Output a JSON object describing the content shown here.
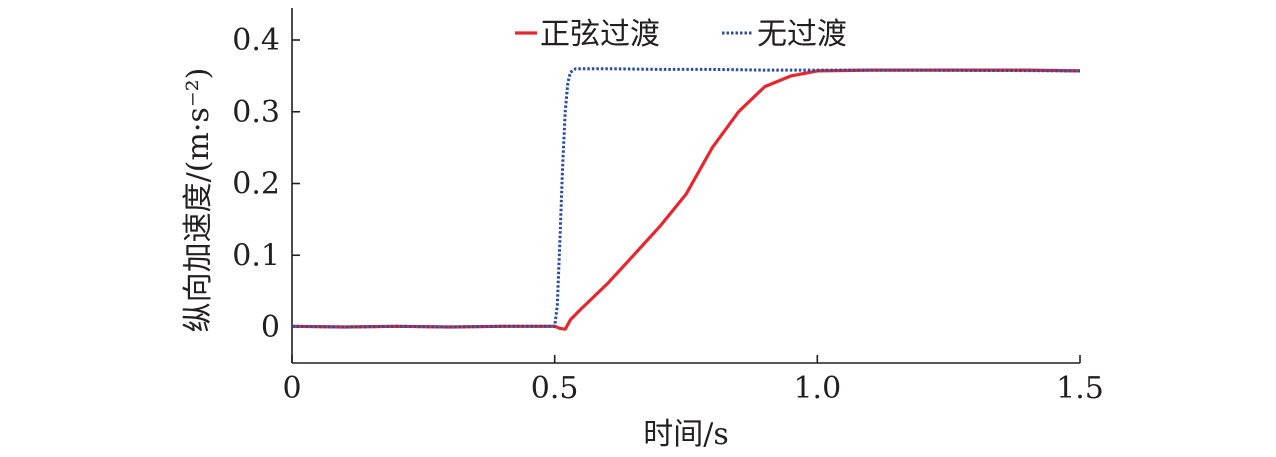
{
  "chart_data": {
    "type": "line",
    "title": "",
    "xlabel": "时间/s",
    "ylabel": "纵向加速度/(m·s⁻²)",
    "xlim": [
      0,
      1.5
    ],
    "ylim": [
      -0.05,
      0.45
    ],
    "x_ticks": [
      0,
      0.5,
      1.0,
      1.5
    ],
    "x_tick_labels": [
      "0",
      "0.5",
      "1.0",
      "1.5"
    ],
    "y_ticks": [
      0,
      0.1,
      0.2,
      0.3,
      0.4
    ],
    "y_tick_labels": [
      "0",
      "0.1",
      "0.2",
      "0.3",
      "0.4"
    ],
    "grid": false,
    "legend_position": "top-center",
    "series": [
      {
        "name": "正弦过渡",
        "color": "#e8262e",
        "line_style": "solid",
        "points": [
          [
            0,
            0.001
          ],
          [
            0.1,
            0.0
          ],
          [
            0.2,
            0.001
          ],
          [
            0.3,
            0.0
          ],
          [
            0.4,
            0.001
          ],
          [
            0.5,
            0.001
          ],
          [
            0.51,
            -0.002
          ],
          [
            0.52,
            -0.003
          ],
          [
            0.53,
            0.01
          ],
          [
            0.55,
            0.025
          ],
          [
            0.6,
            0.06
          ],
          [
            0.65,
            0.1
          ],
          [
            0.7,
            0.14
          ],
          [
            0.75,
            0.185
          ],
          [
            0.8,
            0.25
          ],
          [
            0.85,
            0.3
          ],
          [
            0.9,
            0.335
          ],
          [
            0.95,
            0.35
          ],
          [
            1.0,
            0.357
          ],
          [
            1.1,
            0.358
          ],
          [
            1.2,
            0.358
          ],
          [
            1.3,
            0.358
          ],
          [
            1.4,
            0.358
          ],
          [
            1.5,
            0.357
          ]
        ]
      },
      {
        "name": "无过渡",
        "color": "#2a4da3",
        "line_style": "dotted",
        "points": [
          [
            0,
            0.001
          ],
          [
            0.1,
            0.0
          ],
          [
            0.2,
            0.001
          ],
          [
            0.3,
            0.0
          ],
          [
            0.4,
            0.001
          ],
          [
            0.5,
            0.001
          ],
          [
            0.505,
            0.03
          ],
          [
            0.51,
            0.12
          ],
          [
            0.515,
            0.22
          ],
          [
            0.52,
            0.3
          ],
          [
            0.525,
            0.34
          ],
          [
            0.53,
            0.355
          ],
          [
            0.54,
            0.36
          ],
          [
            0.6,
            0.36
          ],
          [
            0.7,
            0.359
          ],
          [
            0.8,
            0.359
          ],
          [
            0.9,
            0.358
          ],
          [
            1.0,
            0.358
          ],
          [
            1.2,
            0.358
          ],
          [
            1.5,
            0.357
          ]
        ]
      }
    ]
  }
}
